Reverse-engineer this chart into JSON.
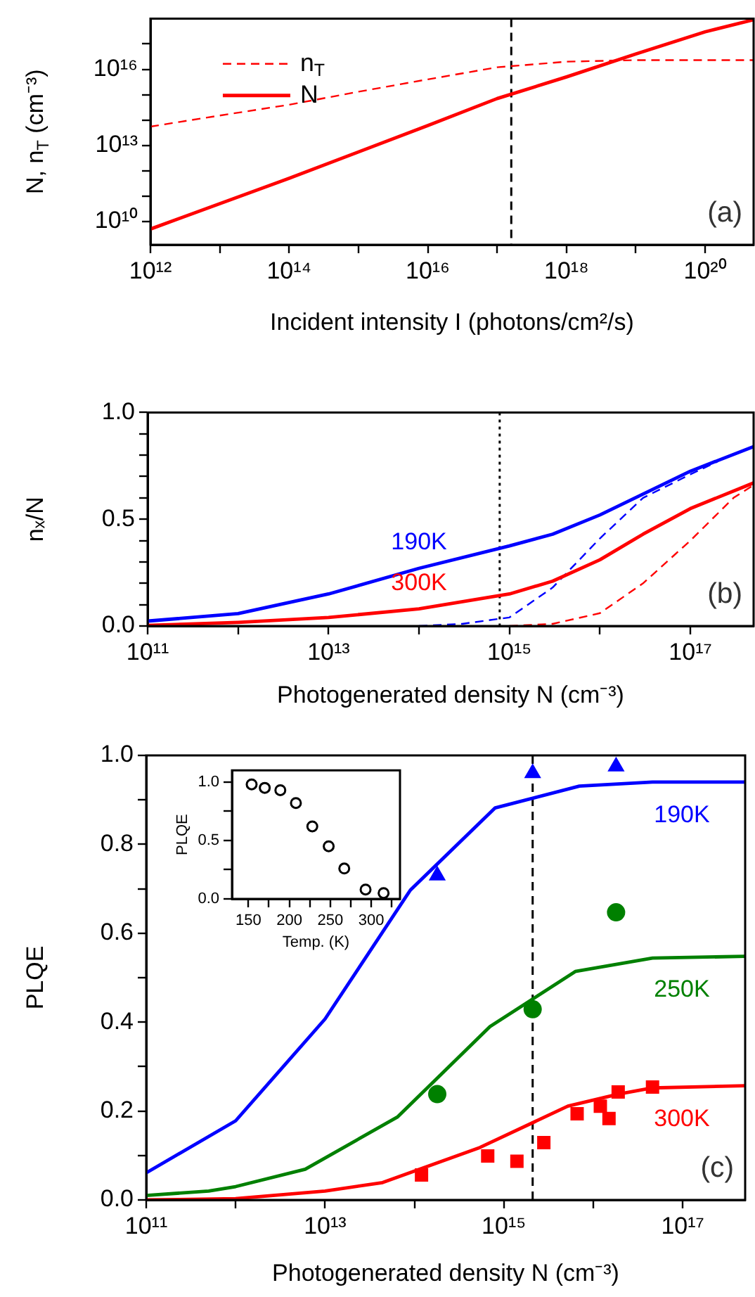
{
  "chart_data": [
    {
      "type": "line",
      "xlabel": "Incident intensity I (photons/cm²/s)",
      "ylabel": "N, n$_{T}$ (cm⁻³)",
      "log": "xy",
      "xlim": [
        1000000000000.0,
        5e+20
      ],
      "ylim": [
        1200000000.0,
        1e+18
      ],
      "xticks": [
        {
          "value": 1000000000000.0,
          "label": "10¹²"
        },
        {
          "value": 10000000000000.0,
          "label": null
        },
        {
          "value": 100000000000000.0,
          "label": "10¹⁴"
        },
        {
          "value": 1000000000000000.0,
          "label": null
        },
        {
          "value": 1e+16,
          "label": "10¹⁶"
        },
        {
          "value": 1e+17,
          "label": null
        },
        {
          "value": 1e+18,
          "label": "10¹⁸"
        },
        {
          "value": 1e+19,
          "label": null
        },
        {
          "value": 1e+20,
          "label": "10²⁰"
        }
      ],
      "yticks": [
        {
          "value": 10000000000.0,
          "label": "10¹⁰"
        },
        {
          "value": 100000000000.0,
          "label": null
        },
        {
          "value": 1000000000000.0,
          "label": null
        },
        {
          "value": 10000000000000.0,
          "label": "10¹³"
        },
        {
          "value": 100000000000000.0,
          "label": null
        },
        {
          "value": 1000000000000000.0,
          "label": null
        },
        {
          "value": 1e+16,
          "label": "10¹⁶"
        },
        {
          "value": 1e+17,
          "label": null
        }
      ],
      "series": [
        {
          "name": "n$_{T}$",
          "color": "#ff0000",
          "line_style": "dashed",
          "x": [
            1000000000000.0,
            10000000000000.0,
            100000000000000.0,
            1000000000000000.0,
            1e+16,
            1e+17,
            1e+18,
            1e+19,
            5e+20
          ],
          "values": [
            55000000000000.0,
            150000000000000.0,
            400000000000000.0,
            1300000000000000.0,
            4000000000000000.0,
            1.2e+16,
            2e+16,
            2.3e+16,
            2.3e+16
          ]
        },
        {
          "name": "N",
          "color": "#ff0000",
          "x": [
            1000000000000.0,
            100000000000000.0,
            1e+16,
            1e+17,
            1e+18,
            1e+19,
            1e+20,
            5e+20
          ],
          "values": [
            5000000000.0,
            500000000000.0,
            60000000000000.0,
            700000000000000.0,
            5000000000000000.0,
            4e+16,
            3e+17,
            9e+17
          ]
        }
      ],
      "ref_lines": [
        {
          "axis": "x",
          "value": 1.6e+17,
          "color": "#000000",
          "line_style": "dashed"
        }
      ],
      "legend": "top left",
      "annotations": [
        "(a)"
      ]
    },
    {
      "type": "line",
      "xlabel": "Photogenerated density N (cm⁻³)",
      "ylabel": "nₓ/N",
      "log": "x",
      "xlim": [
        100000000000.0,
        5e+17
      ],
      "ylim": [
        0,
        1
      ],
      "xticks": [
        {
          "value": 100000000000.0,
          "label": "10¹¹"
        },
        {
          "value": 1000000000000.0,
          "label": null
        },
        {
          "value": 10000000000000.0,
          "label": "10¹³"
        },
        {
          "value": 100000000000000.0,
          "label": null
        },
        {
          "value": 1000000000000000.0,
          "label": "10¹⁵"
        },
        {
          "value": 1e+16,
          "label": null
        },
        {
          "value": 1e+17,
          "label": "10¹⁷"
        }
      ],
      "yticks": [
        {
          "value": 0,
          "label": "0.0"
        },
        {
          "value": 0.1,
          "label": null
        },
        {
          "value": 0.2,
          "label": null
        },
        {
          "value": 0.3,
          "label": null
        },
        {
          "value": 0.4,
          "label": null
        },
        0.5,
        {
          "value": 0.6,
          "label": null
        },
        {
          "value": 0.7,
          "label": null
        },
        {
          "value": 0.8,
          "label": null
        },
        {
          "value": 0.9,
          "label": null
        },
        {
          "value": 1,
          "label": "1.0"
        }
      ],
      "series": [
        {
          "name": "190K",
          "color": "#0000ff",
          "x": [
            100000000000.0,
            1000000000000.0,
            10000000000000.0,
            100000000000000.0,
            1000000000000000.0,
            3000000000000000.0,
            1e+16,
            1e+17,
            5e+17
          ],
          "values": [
            0.023,
            0.058,
            0.15,
            0.27,
            0.375,
            0.43,
            0.52,
            0.725,
            0.84
          ]
        },
        {
          "name": "300K",
          "color": "#ff0000",
          "x": [
            100000000000.0,
            1000000000000.0,
            10000000000000.0,
            100000000000000.0,
            1000000000000000.0,
            3000000000000000.0,
            1e+16,
            3e+16,
            1e+17,
            5e+17
          ],
          "values": [
            0.003,
            0.017,
            0.04,
            0.08,
            0.15,
            0.21,
            0.31,
            0.43,
            0.55,
            0.67
          ]
        },
        {
          "color": "#0000ff",
          "line_style": "dashed",
          "x": [
            100000000000000.0,
            300000000000000.0,
            1000000000000000.0,
            3000000000000000.0,
            1e+16,
            3e+16,
            1e+17,
            2e+17
          ],
          "values": [
            0,
            0.01,
            0.04,
            0.18,
            0.41,
            0.6,
            0.71,
            0.77
          ]
        },
        {
          "color": "#ff0000",
          "line_style": "dashed",
          "x": [
            1000000000000000.0,
            3000000000000000.0,
            1e+16,
            3e+16,
            1e+17,
            3e+17,
            5e+17
          ],
          "values": [
            0,
            0.01,
            0.06,
            0.2,
            0.4,
            0.6,
            0.66
          ]
        }
      ],
      "ref_lines": [
        {
          "axis": "x",
          "value": 780000000000000.0,
          "color": "#000000",
          "line_style": "dotted"
        }
      ],
      "annotations": [
        "(b)"
      ]
    },
    {
      "type": "line",
      "xlabel": "Photogenerated density N (cm⁻³)",
      "ylabel": "PLQE",
      "log": "x",
      "xlim": [
        100000000000.0,
        5e+17
      ],
      "ylim": [
        0,
        1
      ],
      "xticks": [
        {
          "value": 100000000000.0,
          "label": "10¹¹"
        },
        {
          "value": 1000000000000.0,
          "label": null
        },
        {
          "value": 10000000000000.0,
          "label": "10¹³"
        },
        {
          "value": 100000000000000.0,
          "label": null
        },
        {
          "value": 1000000000000000.0,
          "label": "10¹⁵"
        },
        {
          "value": 1e+16,
          "label": null
        },
        {
          "value": 1e+17,
          "label": "10¹⁷"
        }
      ],
      "yticks": [
        {
          "value": 0,
          "label": "0.0"
        },
        {
          "value": 0.1,
          "label": null
        },
        0.2,
        {
          "value": 0.3,
          "label": null
        },
        0.4,
        {
          "value": 0.5,
          "label": null
        },
        0.6,
        {
          "value": 0.7,
          "label": null
        },
        0.8,
        {
          "value": 0.9,
          "label": null
        },
        {
          "value": 1,
          "label": "1.0"
        }
      ],
      "series": [
        {
          "name": "190K",
          "color": "#0000ff",
          "x": [
            100000000000.0,
            1000000000000.0,
            10000000000000.0,
            90000000000000.0,
            800000000000000.0,
            7000000000000000.0,
            4.6e+16,
            5e+17
          ],
          "values": [
            0.061,
            0.178,
            0.407,
            0.697,
            0.882,
            0.931,
            0.94,
            0.94
          ]
        },
        {
          "name": "250K",
          "color": "#008000",
          "x": [
            100000000000.0,
            500000000000.0,
            1000000000000.0,
            6000000000000.0,
            65000000000000.0,
            700000000000000.0,
            6300000000000000.0,
            4.6e+16,
            5e+17
          ],
          "values": [
            0.01,
            0.02,
            0.03,
            0.069,
            0.187,
            0.39,
            0.514,
            0.544,
            0.548
          ]
        },
        {
          "name": "300K",
          "color": "#ff0000",
          "x": [
            100000000000.0,
            1000000000000.0,
            10000000000000.0,
            44000000000000.0,
            540000000000000.0,
            5200000000000000.0,
            1.9e+16,
            4.6e+16,
            5e+17
          ],
          "values": [
            0,
            0.003,
            0.02,
            0.039,
            0.118,
            0.211,
            0.238,
            0.252,
            0.257
          ]
        },
        {
          "type": "scatter",
          "marker": "triangle",
          "color": "#0000ff",
          "x": [
            180000000000000.0,
            2100000000000000.0,
            1.8e+16
          ],
          "values": [
            0.73,
            0.96,
            0.975
          ]
        },
        {
          "type": "scatter",
          "marker": "circle",
          "color": "#008000",
          "x": [
            180000000000000.0,
            2100000000000000.0,
            1.8e+16
          ],
          "values": [
            0.238,
            0.429,
            0.647
          ]
        },
        {
          "type": "scatter",
          "marker": "square",
          "color": "#ff0000",
          "x": [
            120000000000000.0,
            660000000000000.0,
            1400000000000000.0,
            2800000000000000.0,
            6600000000000000.0,
            1.2e+16,
            1.5e+16,
            1.9e+16,
            4.6e+16
          ],
          "values": [
            0.056,
            0.099,
            0.087,
            0.129,
            0.194,
            0.211,
            0.183,
            0.243,
            0.254
          ]
        }
      ],
      "ref_lines": [
        {
          "axis": "x",
          "value": 2100000000000000.0,
          "color": "#000000",
          "line_style": "dashed"
        }
      ],
      "annotations": [
        "(c)"
      ]
    },
    {
      "type": "scatter",
      "xlabel": "Temp. (K)",
      "ylabel": "PLQE",
      "xlim": [
        130,
        335
      ],
      "ylim": [
        0,
        1.1
      ],
      "xticks": [
        150,
        {
          "value": 175,
          "label": null
        },
        200,
        {
          "value": 225,
          "label": null
        },
        250,
        {
          "value": 275,
          "label": null
        },
        300,
        {
          "value": 325,
          "label": null
        }
      ],
      "yticks": [
        {
          "value": 0,
          "label": "0.0"
        },
        {
          "value": 0.25,
          "label": null
        },
        0.5,
        {
          "value": 0.75,
          "label": null
        },
        {
          "value": 1,
          "label": "1.0"
        }
      ],
      "x": [
        154,
        170,
        189,
        208,
        228,
        248,
        267,
        293,
        315
      ],
      "values": [
        0.98,
        0.95,
        0.93,
        0.82,
        0.62,
        0.45,
        0.26,
        0.08,
        0.05
      ],
      "color": "#000000",
      "marker": "circle"
    }
  ]
}
